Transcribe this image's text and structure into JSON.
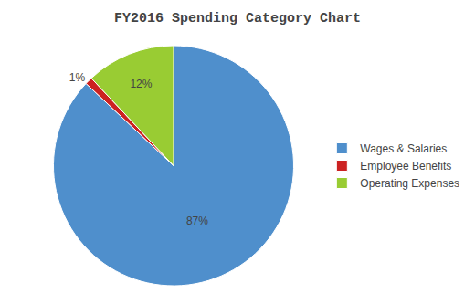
{
  "chart_data": {
    "type": "pie",
    "title": "FY2016 Spending Category Chart",
    "categories": [
      "Wages & Salaries",
      "Employee Benefits",
      "Operating Expenses"
    ],
    "values": [
      87,
      1,
      12
    ],
    "value_labels": [
      "87%",
      "1%",
      "12%"
    ],
    "colors": [
      "#4f8fcc",
      "#cc2222",
      "#99cc33"
    ],
    "data_labels": true,
    "legend": "right"
  }
}
